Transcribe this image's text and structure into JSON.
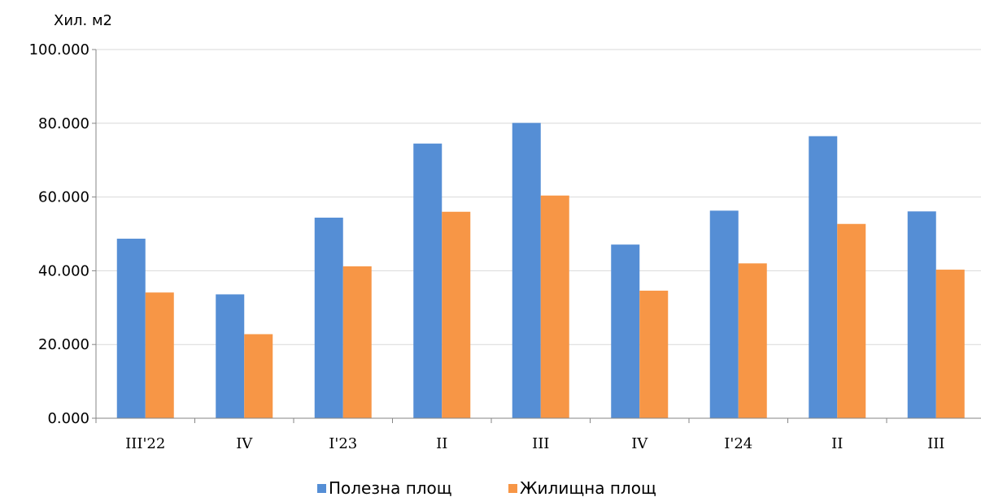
{
  "chart_data": {
    "type": "bar",
    "ylabel": "Хил. м2",
    "categories": [
      "III'22",
      "IV",
      "I'23",
      "II",
      "III",
      "IV",
      "I'24",
      "II",
      "III"
    ],
    "series": [
      {
        "name": "Полезна площ",
        "color": "#558ED5",
        "values": [
          48.7,
          33.6,
          54.4,
          74.5,
          80.1,
          47.1,
          56.3,
          76.5,
          56.1
        ]
      },
      {
        "name": "Жилищна площ",
        "color": "#F79646",
        "values": [
          34.1,
          22.8,
          41.2,
          56.0,
          60.4,
          34.6,
          42.0,
          52.7,
          40.3
        ]
      }
    ],
    "ylim": [
      0,
      100
    ],
    "yticks": [
      "0.000",
      "20.000",
      "40.000",
      "60.000",
      "80.000",
      "100.000"
    ],
    "grid": true,
    "gridline_color": "#D9D9D9",
    "legend_position": "bottom"
  }
}
